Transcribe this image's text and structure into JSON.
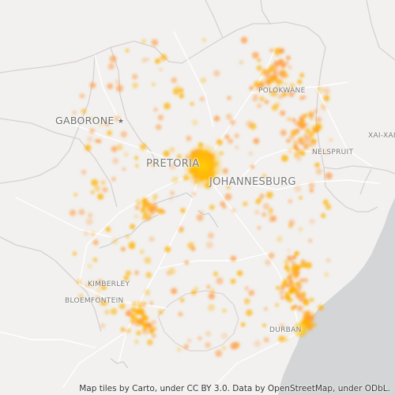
{
  "map": {
    "colors": {
      "land": "#f2f1ef",
      "ocean": "#d3d4d6",
      "border": "#d6d0d0",
      "road": "#ffffff",
      "river": "#c9cfd4",
      "point": "#ffb400",
      "point_core": "#ffcc00"
    },
    "labels": {
      "gaborone": "GABORONE",
      "pretoria": "PRETORIA",
      "johannesburg": "JOHANNESBURG",
      "polokwane": "POLOKWANE",
      "nelspruit": "NELSPRUIT",
      "xai_xai": "XAI-XAI",
      "kimberley": "KIMBERLEY",
      "bloemfontein": "BLOEMFONTEIN",
      "durban": "DURBAN"
    },
    "capital_marker": "star-icon",
    "attribution": "Map tiles by Carto, under CC BY 3.0. Data by OpenStreetMap, under ODbL."
  }
}
